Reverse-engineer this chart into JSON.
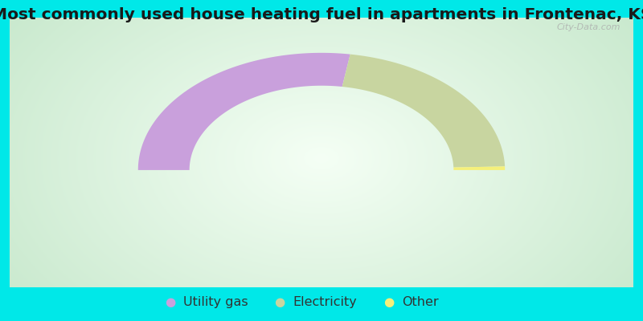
{
  "title": "Most commonly used house heating fuel in apartments in Frontenac, KS",
  "values": [
    55,
    44,
    1
  ],
  "labels": [
    "Utility gas",
    "Electricity",
    "Other"
  ],
  "colors": [
    "#c9a0dc",
    "#c8d5a0",
    "#f5f07a"
  ],
  "bg_cyan": "#00e8e8",
  "bg_center": "#f5fdf5",
  "bg_edge": "#c8e8cc",
  "outer_r": 1.0,
  "inner_r": 0.72,
  "title_fontsize": 14.5,
  "legend_fontsize": 11.5
}
